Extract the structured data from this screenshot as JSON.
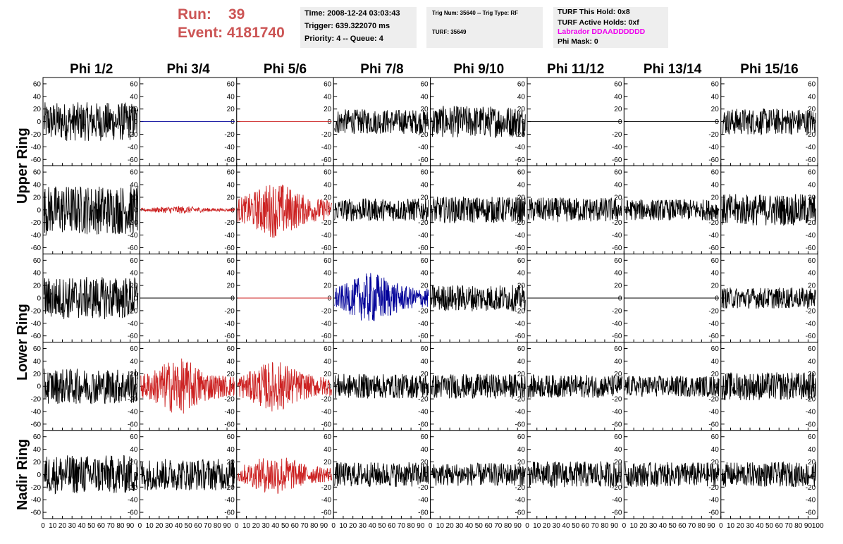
{
  "header": {
    "run_label": "Run:",
    "run_value": "39",
    "event_label": "Event:",
    "event_value": "4181740",
    "time": "Time: 2008-12-24 03:03:43",
    "trigger": "Trigger: 639.322070 ms",
    "priority_queue": "Priority: 4 -- Queue: 4",
    "trig_num_type": "Trig Num: 35640 -- Trig Type: RF",
    "turf": "TURF: 35649",
    "turf_this_hold": "TURF This Hold: 0x8",
    "turf_active_holds": "TURF Active Holds: 0xf",
    "labrador": "Labrador DDAADDDDDD",
    "phi_mask": "Phi Mask: 0"
  },
  "colors": {
    "red_text": "#cc5555",
    "magenta": "#ee00ee",
    "trace_black": "#000000",
    "trace_red": "#cc2222",
    "trace_blue": "#000099"
  },
  "chart_data": {
    "type": "line",
    "title": "",
    "columns": [
      "Phi 1/2",
      "Phi 3/4",
      "Phi 5/6",
      "Phi 7/8",
      "Phi 9/10",
      "Phi 11/12",
      "Phi 13/14",
      "Phi 15/16"
    ],
    "ring_labels": [
      "Upper Ring",
      "Lower Ring",
      "Nadir Ring"
    ],
    "xlim": [
      0,
      100
    ],
    "ylim": [
      -70,
      70
    ],
    "x_ticks": [
      0,
      10,
      20,
      30,
      40,
      50,
      60,
      70,
      80,
      90,
      100
    ],
    "y_ticks": [
      -60,
      -40,
      -20,
      0,
      20,
      40,
      60
    ],
    "x_tick_labels": [
      "0",
      "10",
      "20",
      "30",
      "40",
      "50",
      "60",
      "70",
      "80",
      "90",
      "100"
    ],
    "y_tick_labels": [
      "-60",
      "-40",
      "-20",
      "0",
      "20",
      "40",
      "60"
    ],
    "panels": [
      [
        {
          "amp": 22,
          "color": "black"
        },
        {
          "amp": 0,
          "color": "blue"
        },
        {
          "amp": 0,
          "color": "red"
        },
        {
          "amp": 14,
          "color": "black"
        },
        {
          "amp": 18,
          "color": "black"
        },
        {
          "amp": 0,
          "color": "black"
        },
        {
          "amp": 0,
          "color": "black"
        },
        {
          "amp": 15,
          "color": "black"
        }
      ],
      [
        {
          "amp": 28,
          "color": "black"
        },
        {
          "amp": 3,
          "color": "red"
        },
        {
          "amp": 22,
          "color": "red"
        },
        {
          "amp": 13,
          "color": "black"
        },
        {
          "amp": 15,
          "color": "black"
        },
        {
          "amp": 14,
          "color": "black"
        },
        {
          "amp": 12,
          "color": "black"
        },
        {
          "amp": 18,
          "color": "black"
        }
      ],
      [
        {
          "amp": 24,
          "color": "black"
        },
        {
          "amp": 0,
          "color": "black"
        },
        {
          "amp": 0,
          "color": "red"
        },
        {
          "amp": 20,
          "color": "blue"
        },
        {
          "amp": 15,
          "color": "black"
        },
        {
          "amp": 0,
          "color": "black"
        },
        {
          "amp": 0,
          "color": "black"
        },
        {
          "amp": 12,
          "color": "black"
        }
      ],
      [
        {
          "amp": 20,
          "color": "black"
        },
        {
          "amp": 22,
          "color": "red"
        },
        {
          "amp": 20,
          "color": "red"
        },
        {
          "amp": 14,
          "color": "black"
        },
        {
          "amp": 14,
          "color": "black"
        },
        {
          "amp": 13,
          "color": "black"
        },
        {
          "amp": 12,
          "color": "black"
        },
        {
          "amp": 16,
          "color": "black"
        }
      ],
      [
        {
          "amp": 22,
          "color": "black"
        },
        {
          "amp": 18,
          "color": "black"
        },
        {
          "amp": 16,
          "color": "red"
        },
        {
          "amp": 14,
          "color": "black"
        },
        {
          "amp": 13,
          "color": "black"
        },
        {
          "amp": 15,
          "color": "black"
        },
        {
          "amp": 14,
          "color": "black"
        },
        {
          "amp": 14,
          "color": "black"
        }
      ]
    ]
  }
}
